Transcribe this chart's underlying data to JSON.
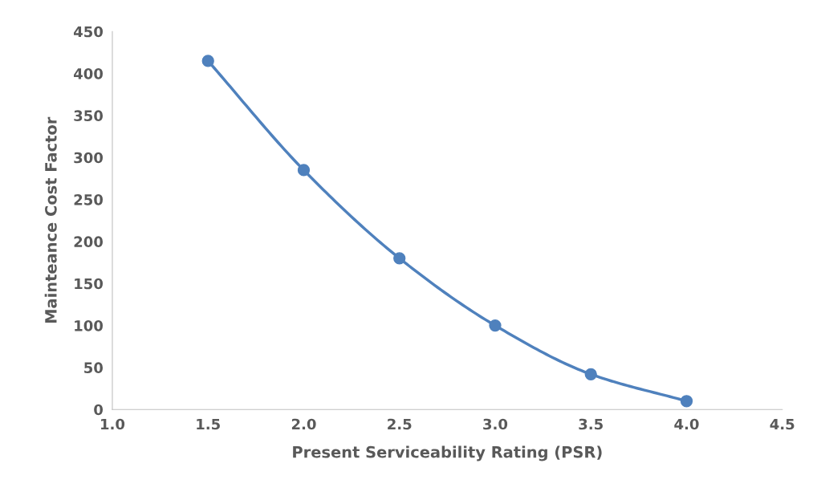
{
  "chart_data": {
    "type": "line",
    "xlabel": "Present Serviceability Rating (PSR)",
    "ylabel": "Mainteance Cost Factor",
    "x": [
      1.5,
      2.0,
      2.5,
      3.0,
      3.5,
      4.0
    ],
    "series": [
      {
        "color": "#4f81bd",
        "values": [
          415,
          285,
          180,
          100,
          42,
          10
        ]
      }
    ],
    "xlim": [
      1.0,
      4.5
    ],
    "xticks": [
      {
        "value": 1.0,
        "label": "1.0"
      },
      {
        "value": 1.5,
        "label": "1.5"
      },
      {
        "value": 2.0,
        "label": "2.0"
      },
      {
        "value": 2.5,
        "label": "2.5"
      },
      {
        "value": 3.0,
        "label": "3.0"
      },
      {
        "value": 3.5,
        "label": "3.5"
      },
      {
        "value": 4.0,
        "label": "4.0"
      },
      {
        "value": 4.5,
        "label": "4.5"
      }
    ],
    "ylim": [
      0,
      450
    ],
    "yticks": [
      0,
      50,
      100,
      150,
      200,
      250,
      300,
      350,
      400,
      450
    ],
    "grid": false,
    "marker": "circle",
    "line_style": "solid"
  }
}
